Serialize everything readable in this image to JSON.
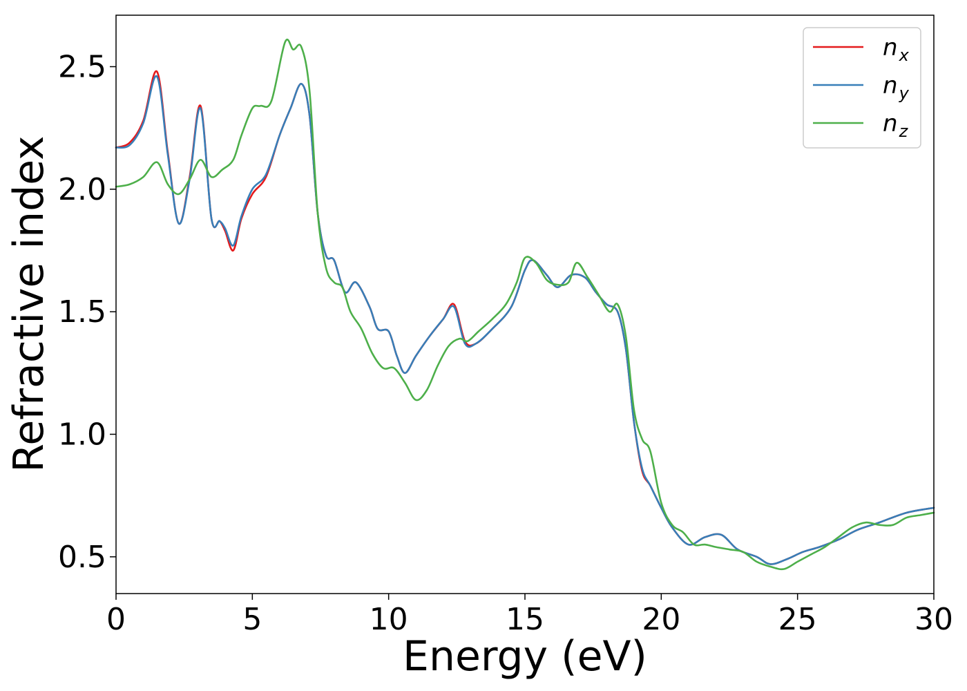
{
  "chart_data": {
    "type": "line",
    "title": "",
    "xlabel": "Energy (eV)",
    "ylabel": "Refractive index",
    "xlim": [
      0,
      30
    ],
    "ylim": [
      0.35,
      2.71
    ],
    "xticks": [
      0,
      5,
      10,
      15,
      20,
      25,
      30
    ],
    "xtick_labels": [
      "0",
      "5",
      "10",
      "15",
      "20",
      "25",
      "30"
    ],
    "yticks": [
      0.5,
      1.0,
      1.5,
      2.0,
      2.5
    ],
    "ytick_labels": [
      "0.5",
      "1.0",
      "1.5",
      "2.0",
      "2.5"
    ],
    "grid": false,
    "legend_position": "top-right",
    "series": [
      {
        "name": "n_x",
        "label_base": "n",
        "label_sub": "x",
        "color": "#e41a1c",
        "points": [
          [
            0,
            2.17
          ],
          [
            0.5,
            2.19
          ],
          [
            1.0,
            2.28
          ],
          [
            1.5,
            2.48
          ],
          [
            1.9,
            2.15
          ],
          [
            2.3,
            1.86
          ],
          [
            2.7,
            2.05
          ],
          [
            3.1,
            2.34
          ],
          [
            3.5,
            1.88
          ],
          [
            3.8,
            1.87
          ],
          [
            4.0,
            1.83
          ],
          [
            4.3,
            1.75
          ],
          [
            4.6,
            1.88
          ],
          [
            5.0,
            1.98
          ],
          [
            5.5,
            2.05
          ],
          [
            6.0,
            2.22
          ],
          [
            6.4,
            2.33
          ],
          [
            6.8,
            2.43
          ],
          [
            7.1,
            2.3
          ],
          [
            7.4,
            1.9
          ],
          [
            7.7,
            1.73
          ],
          [
            8.0,
            1.71
          ],
          [
            8.4,
            1.58
          ],
          [
            8.8,
            1.62
          ],
          [
            9.3,
            1.52
          ],
          [
            9.6,
            1.43
          ],
          [
            10.0,
            1.42
          ],
          [
            10.3,
            1.32
          ],
          [
            10.6,
            1.25
          ],
          [
            11.0,
            1.32
          ],
          [
            11.5,
            1.4
          ],
          [
            12.0,
            1.47
          ],
          [
            12.4,
            1.53
          ],
          [
            12.8,
            1.38
          ],
          [
            13.2,
            1.37
          ],
          [
            13.8,
            1.43
          ],
          [
            14.5,
            1.52
          ],
          [
            15.0,
            1.67
          ],
          [
            15.3,
            1.71
          ],
          [
            15.8,
            1.65
          ],
          [
            16.2,
            1.6
          ],
          [
            16.7,
            1.65
          ],
          [
            17.2,
            1.64
          ],
          [
            17.6,
            1.58
          ],
          [
            18.0,
            1.53
          ],
          [
            18.4,
            1.5
          ],
          [
            18.7,
            1.35
          ],
          [
            19.0,
            1.05
          ],
          [
            19.3,
            0.85
          ],
          [
            19.6,
            0.79
          ],
          [
            20.0,
            0.7
          ],
          [
            20.4,
            0.62
          ],
          [
            21.0,
            0.55
          ],
          [
            21.6,
            0.58
          ],
          [
            22.2,
            0.59
          ],
          [
            22.8,
            0.53
          ],
          [
            23.5,
            0.5
          ],
          [
            24.0,
            0.47
          ],
          [
            24.6,
            0.49
          ],
          [
            25.2,
            0.52
          ],
          [
            25.8,
            0.54
          ],
          [
            26.5,
            0.57
          ],
          [
            27.2,
            0.61
          ],
          [
            28.0,
            0.64
          ],
          [
            29.0,
            0.68
          ],
          [
            30.0,
            0.7
          ]
        ]
      },
      {
        "name": "n_y",
        "label_base": "n",
        "label_sub": "y",
        "color": "#377eb8",
        "points": [
          [
            0,
            2.17
          ],
          [
            0.5,
            2.18
          ],
          [
            1.0,
            2.27
          ],
          [
            1.5,
            2.46
          ],
          [
            1.9,
            2.14
          ],
          [
            2.3,
            1.86
          ],
          [
            2.7,
            2.04
          ],
          [
            3.1,
            2.33
          ],
          [
            3.5,
            1.88
          ],
          [
            3.8,
            1.87
          ],
          [
            4.0,
            1.84
          ],
          [
            4.3,
            1.77
          ],
          [
            4.6,
            1.89
          ],
          [
            5.0,
            2.0
          ],
          [
            5.5,
            2.06
          ],
          [
            6.0,
            2.22
          ],
          [
            6.4,
            2.33
          ],
          [
            6.8,
            2.43
          ],
          [
            7.1,
            2.3
          ],
          [
            7.4,
            1.9
          ],
          [
            7.7,
            1.73
          ],
          [
            8.0,
            1.71
          ],
          [
            8.4,
            1.58
          ],
          [
            8.8,
            1.62
          ],
          [
            9.3,
            1.52
          ],
          [
            9.6,
            1.43
          ],
          [
            10.0,
            1.42
          ],
          [
            10.3,
            1.32
          ],
          [
            10.6,
            1.25
          ],
          [
            11.0,
            1.32
          ],
          [
            11.5,
            1.4
          ],
          [
            12.0,
            1.47
          ],
          [
            12.4,
            1.52
          ],
          [
            12.8,
            1.37
          ],
          [
            13.2,
            1.37
          ],
          [
            13.8,
            1.43
          ],
          [
            14.5,
            1.52
          ],
          [
            15.0,
            1.67
          ],
          [
            15.3,
            1.71
          ],
          [
            15.8,
            1.65
          ],
          [
            16.2,
            1.6
          ],
          [
            16.7,
            1.65
          ],
          [
            17.2,
            1.64
          ],
          [
            17.6,
            1.58
          ],
          [
            18.0,
            1.53
          ],
          [
            18.4,
            1.5
          ],
          [
            18.7,
            1.35
          ],
          [
            19.0,
            1.05
          ],
          [
            19.3,
            0.86
          ],
          [
            19.6,
            0.79
          ],
          [
            20.0,
            0.7
          ],
          [
            20.4,
            0.62
          ],
          [
            21.0,
            0.55
          ],
          [
            21.6,
            0.58
          ],
          [
            22.2,
            0.59
          ],
          [
            22.8,
            0.53
          ],
          [
            23.5,
            0.5
          ],
          [
            24.0,
            0.47
          ],
          [
            24.6,
            0.49
          ],
          [
            25.2,
            0.52
          ],
          [
            25.8,
            0.54
          ],
          [
            26.5,
            0.57
          ],
          [
            27.2,
            0.61
          ],
          [
            28.0,
            0.64
          ],
          [
            29.0,
            0.68
          ],
          [
            30.0,
            0.7
          ]
        ]
      },
      {
        "name": "n_z",
        "label_base": "n",
        "label_sub": "z",
        "color": "#4daf4a",
        "points": [
          [
            0,
            2.01
          ],
          [
            0.5,
            2.02
          ],
          [
            1.0,
            2.05
          ],
          [
            1.5,
            2.11
          ],
          [
            1.9,
            2.02
          ],
          [
            2.3,
            1.98
          ],
          [
            2.7,
            2.04
          ],
          [
            3.1,
            2.12
          ],
          [
            3.5,
            2.05
          ],
          [
            3.9,
            2.08
          ],
          [
            4.3,
            2.12
          ],
          [
            4.6,
            2.22
          ],
          [
            5.0,
            2.33
          ],
          [
            5.3,
            2.34
          ],
          [
            5.7,
            2.36
          ],
          [
            6.2,
            2.6
          ],
          [
            6.5,
            2.57
          ],
          [
            6.8,
            2.58
          ],
          [
            7.1,
            2.4
          ],
          [
            7.4,
            1.9
          ],
          [
            7.7,
            1.68
          ],
          [
            8.0,
            1.62
          ],
          [
            8.3,
            1.6
          ],
          [
            8.6,
            1.5
          ],
          [
            9.0,
            1.43
          ],
          [
            9.4,
            1.33
          ],
          [
            9.8,
            1.27
          ],
          [
            10.2,
            1.27
          ],
          [
            10.6,
            1.21
          ],
          [
            11.0,
            1.14
          ],
          [
            11.4,
            1.18
          ],
          [
            11.8,
            1.28
          ],
          [
            12.2,
            1.36
          ],
          [
            12.6,
            1.39
          ],
          [
            12.9,
            1.38
          ],
          [
            13.3,
            1.42
          ],
          [
            13.8,
            1.47
          ],
          [
            14.3,
            1.53
          ],
          [
            14.7,
            1.62
          ],
          [
            15.0,
            1.72
          ],
          [
            15.4,
            1.7
          ],
          [
            15.8,
            1.63
          ],
          [
            16.2,
            1.61
          ],
          [
            16.6,
            1.62
          ],
          [
            16.9,
            1.7
          ],
          [
            17.3,
            1.64
          ],
          [
            17.7,
            1.57
          ],
          [
            18.1,
            1.5
          ],
          [
            18.4,
            1.53
          ],
          [
            18.7,
            1.4
          ],
          [
            19.0,
            1.1
          ],
          [
            19.3,
            0.98
          ],
          [
            19.6,
            0.93
          ],
          [
            20.0,
            0.72
          ],
          [
            20.4,
            0.63
          ],
          [
            20.8,
            0.6
          ],
          [
            21.2,
            0.55
          ],
          [
            21.6,
            0.55
          ],
          [
            22.0,
            0.54
          ],
          [
            22.5,
            0.53
          ],
          [
            23.0,
            0.52
          ],
          [
            23.5,
            0.48
          ],
          [
            24.0,
            0.46
          ],
          [
            24.5,
            0.45
          ],
          [
            25.0,
            0.48
          ],
          [
            25.5,
            0.51
          ],
          [
            26.0,
            0.54
          ],
          [
            26.5,
            0.58
          ],
          [
            27.0,
            0.62
          ],
          [
            27.5,
            0.64
          ],
          [
            28.0,
            0.63
          ],
          [
            28.5,
            0.63
          ],
          [
            29.0,
            0.66
          ],
          [
            29.5,
            0.67
          ],
          [
            30.0,
            0.68
          ]
        ]
      }
    ]
  }
}
